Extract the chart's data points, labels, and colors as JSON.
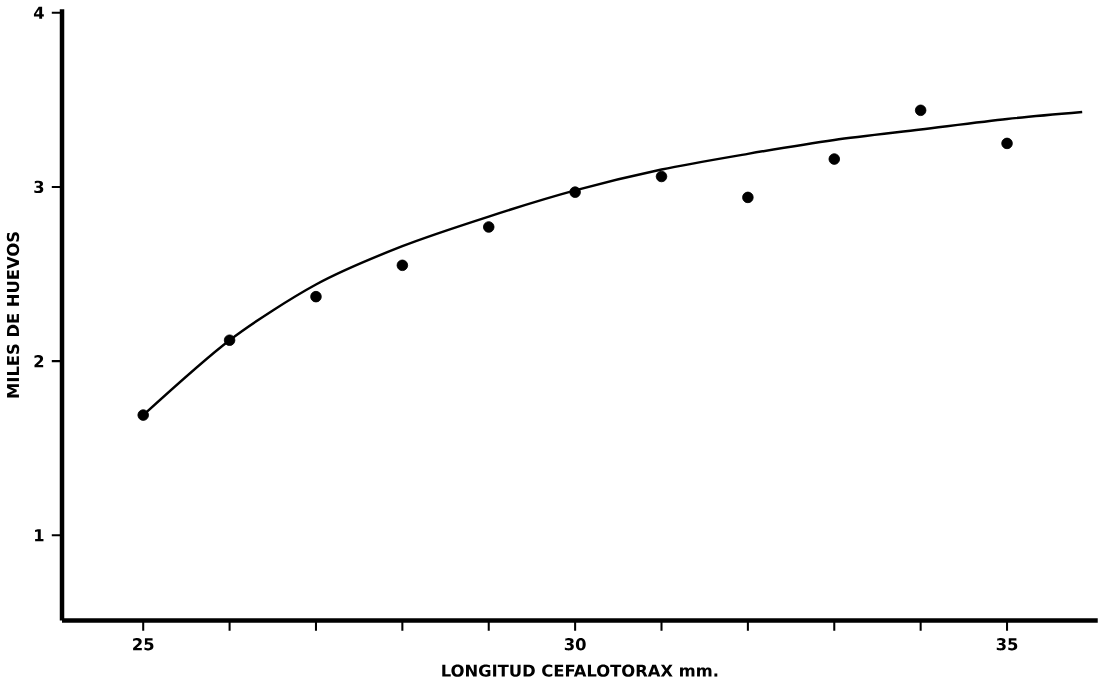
{
  "chart_data": {
    "type": "scatter",
    "xlabel": "LONGITUD CEFALOTORAX mm.",
    "ylabel": "MILES DE HUEVOS",
    "xlim": [
      24.06,
      36.05
    ],
    "ylim": [
      0.51,
      4.02
    ],
    "xticks": [
      25,
      {
        "value": 26,
        "label": null
      },
      {
        "value": 27,
        "label": null
      },
      {
        "value": 28,
        "label": null
      },
      {
        "value": 29,
        "label": null
      },
      30,
      {
        "value": 31,
        "label": null
      },
      {
        "value": 32,
        "label": null
      },
      {
        "value": 33,
        "label": null
      },
      {
        "value": 34,
        "label": null
      },
      35
    ],
    "yticks": [
      1,
      2,
      3,
      4
    ],
    "series": [
      {
        "color": "#000000",
        "marker": "circle",
        "x": [
          25,
          26,
          27,
          28,
          29,
          30,
          31,
          32,
          33,
          34,
          35
        ],
        "values": [
          1.69,
          2.12,
          2.37,
          2.55,
          2.77,
          2.97,
          3.06,
          2.94,
          3.16,
          3.44,
          3.25
        ]
      },
      {
        "type": "line",
        "color": "#000000",
        "marker": "none",
        "line_style": "solid",
        "x": [
          25,
          26,
          27,
          28,
          29,
          30,
          31,
          32,
          33,
          34,
          35,
          35.87
        ],
        "values": [
          1.69,
          2.12,
          2.44,
          2.66,
          2.83,
          2.98,
          3.1,
          3.19,
          3.27,
          3.33,
          3.39,
          3.43
        ]
      }
    ]
  }
}
